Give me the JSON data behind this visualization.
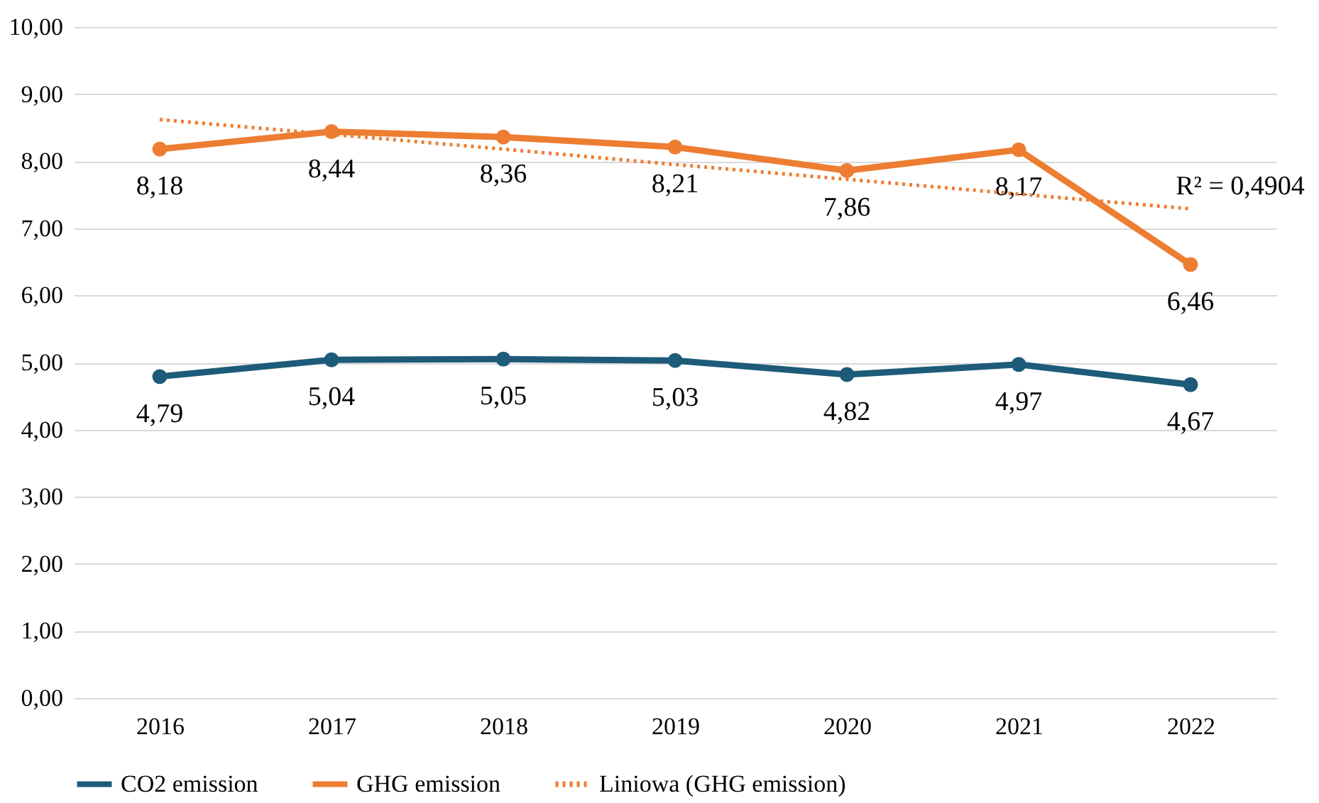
{
  "chart_data": {
    "type": "line",
    "categories": [
      "2016",
      "2017",
      "2018",
      "2019",
      "2020",
      "2021",
      "2022"
    ],
    "series": [
      {
        "name": "CO2 emission",
        "color": "#1d5b79",
        "values": [
          4.79,
          5.04,
          5.05,
          5.03,
          4.82,
          4.97,
          4.67
        ],
        "marker": "circle",
        "line_style": "solid",
        "value_labels": [
          "4,79",
          "5,04",
          "5,05",
          "5,03",
          "4,82",
          "4,97",
          "4,67"
        ]
      },
      {
        "name": "GHG emission",
        "color": "#ed7d31",
        "values": [
          8.18,
          8.44,
          8.36,
          8.21,
          7.86,
          8.17,
          6.46
        ],
        "marker": "circle",
        "line_style": "solid",
        "value_labels": [
          "8,18",
          "8,44",
          "8,36",
          "8,21",
          "7,86",
          "8,17",
          "6,46"
        ]
      },
      {
        "name": "Liniowa (GHG emission)",
        "color": "#ed7d31",
        "type": "line",
        "values": [
          8.62,
          8.4,
          8.18,
          7.95,
          7.73,
          7.51,
          7.29
        ],
        "marker": "none",
        "line_style": "dotted"
      }
    ],
    "ylim": [
      0,
      10
    ],
    "yticks": [
      {
        "value": 0,
        "label": "0,00"
      },
      {
        "value": 1,
        "label": "1,00"
      },
      {
        "value": 2,
        "label": "2,00"
      },
      {
        "value": 3,
        "label": "3,00"
      },
      {
        "value": 4,
        "label": "4,00"
      },
      {
        "value": 5,
        "label": "5,00"
      },
      {
        "value": 6,
        "label": "6,00"
      },
      {
        "value": 7,
        "label": "7,00"
      },
      {
        "value": 8,
        "label": "8,00"
      },
      {
        "value": 9,
        "label": "9,00"
      },
      {
        "value": 10,
        "label": "10,00"
      }
    ],
    "grid": "y",
    "legend": "bottom",
    "annotations": [
      "R² = 0,4904"
    ]
  }
}
